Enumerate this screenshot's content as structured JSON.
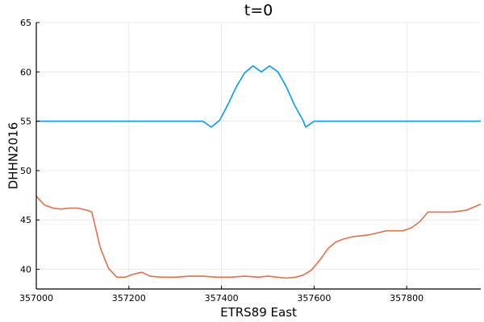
{
  "chart_data": {
    "type": "line",
    "title": "t=0",
    "xlabel": "ETRS89 East",
    "ylabel": "DHHN2016",
    "xlim": [
      357000,
      357960
    ],
    "ylim": [
      38,
      65
    ],
    "xticks": [
      357000,
      357200,
      357400,
      357600,
      357800
    ],
    "yticks": [
      40,
      45,
      50,
      55,
      60,
      65
    ],
    "grid": true,
    "legend": "none",
    "series": [
      {
        "color": "#009AFA",
        "x": [
          357000,
          357100,
          357200,
          357300,
          357360,
          357378,
          357396,
          357414,
          357432,
          357450,
          357468,
          357486,
          357504,
          357522,
          357540,
          357558,
          357576,
          357582,
          357600,
          357700,
          357800,
          357960
        ],
        "y": [
          55.0,
          55.0,
          55.0,
          55.0,
          55.0,
          54.4,
          55.1,
          56.7,
          58.5,
          59.9,
          60.6,
          60.0,
          60.6,
          60.0,
          58.5,
          56.6,
          55.1,
          54.4,
          55.0,
          55.0,
          55.0,
          55.0
        ]
      },
      {
        "color": "#E26F46",
        "x": [
          357000,
          357018,
          357036,
          357054,
          357072,
          357090,
          357108,
          357120,
          357138,
          357156,
          357174,
          357192,
          357210,
          357228,
          357246,
          357270,
          357300,
          357330,
          357360,
          357390,
          357420,
          357450,
          357480,
          357500,
          357520,
          357540,
          357560,
          357576,
          357594,
          357612,
          357630,
          357648,
          357666,
          357684,
          357702,
          357720,
          357738,
          357756,
          357774,
          357792,
          357810,
          357828,
          357846,
          357870,
          357900,
          357930,
          357960
        ],
        "y": [
          47.4,
          46.5,
          46.2,
          46.1,
          46.2,
          46.2,
          46.0,
          45.8,
          42.2,
          40.1,
          39.2,
          39.2,
          39.5,
          39.7,
          39.3,
          39.2,
          39.2,
          39.3,
          39.3,
          39.2,
          39.2,
          39.3,
          39.2,
          39.3,
          39.2,
          39.1,
          39.2,
          39.4,
          39.9,
          40.9,
          42.1,
          42.8,
          43.1,
          43.3,
          43.4,
          43.5,
          43.7,
          43.9,
          43.9,
          43.9,
          44.2,
          44.8,
          45.8,
          45.8,
          45.8,
          46.0,
          46.6
        ]
      }
    ]
  }
}
